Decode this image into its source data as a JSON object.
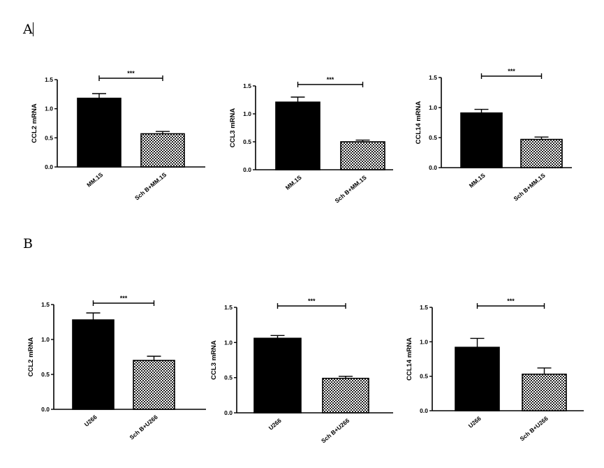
{
  "panels": [
    {
      "letter": "A"
    },
    {
      "letter": "B"
    }
  ],
  "chart_data": [
    {
      "type": "bar",
      "panel": "A",
      "ylabel": "CCL2 mRNA",
      "ylim": [
        0,
        1.5
      ],
      "yticks": [
        "0.0",
        "0.5",
        "1.0",
        "1.5"
      ],
      "categories": [
        "MM.1S",
        "Sch B+MM.1S"
      ],
      "values": [
        1.18,
        0.57
      ],
      "errors": [
        0.08,
        0.04
      ],
      "fills": [
        "solid",
        "checker"
      ],
      "significance": "***"
    },
    {
      "type": "bar",
      "panel": "A",
      "ylabel": "CCL3 mRNA",
      "ylim": [
        0,
        1.5
      ],
      "yticks": [
        "0.0",
        "0.5",
        "1.0",
        "1.5"
      ],
      "categories": [
        "MM.1S",
        "Sch B+MM.1S"
      ],
      "values": [
        1.21,
        0.5
      ],
      "errors": [
        0.09,
        0.03
      ],
      "fills": [
        "solid",
        "checker"
      ],
      "significance": "***"
    },
    {
      "type": "bar",
      "panel": "A",
      "ylabel": "CCL14 mRNA",
      "ylim": [
        0,
        1.5
      ],
      "yticks": [
        "0.0",
        "0.5",
        "1.0",
        "1.5"
      ],
      "categories": [
        "MM.1S",
        "Sch B+MM.1S"
      ],
      "values": [
        0.91,
        0.47
      ],
      "errors": [
        0.06,
        0.04
      ],
      "fills": [
        "solid",
        "checker"
      ],
      "significance": "***"
    },
    {
      "type": "bar",
      "panel": "B",
      "ylabel": "CCL2 mRNA",
      "ylim": [
        0,
        1.5
      ],
      "yticks": [
        "0.0",
        "0.5",
        "1.0",
        "1.5"
      ],
      "categories": [
        "U266",
        "Sch B+U266"
      ],
      "values": [
        1.28,
        0.7
      ],
      "errors": [
        0.1,
        0.06
      ],
      "fills": [
        "solid",
        "checker"
      ],
      "significance": "***"
    },
    {
      "type": "bar",
      "panel": "B",
      "ylabel": "CCL3 mRNA",
      "ylim": [
        0,
        1.5
      ],
      "yticks": [
        "0.0",
        "0.5",
        "1.0",
        "1.5"
      ],
      "categories": [
        "U266",
        "Sch B+U266"
      ],
      "values": [
        1.06,
        0.49
      ],
      "errors": [
        0.04,
        0.03
      ],
      "fills": [
        "solid",
        "checker"
      ],
      "significance": "***"
    },
    {
      "type": "bar",
      "panel": "B",
      "ylabel": "CCL14 mRNA",
      "ylim": [
        0,
        1.5
      ],
      "yticks": [
        "0.0",
        "0.5",
        "1.0",
        "1.5"
      ],
      "categories": [
        "U266",
        "Sch B+U266"
      ],
      "values": [
        0.92,
        0.53
      ],
      "errors": [
        0.13,
        0.09
      ],
      "fills": [
        "solid",
        "checker"
      ],
      "significance": "***"
    }
  ]
}
